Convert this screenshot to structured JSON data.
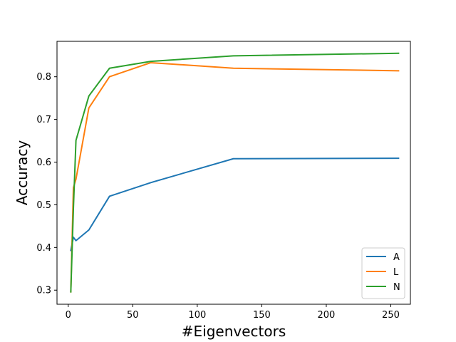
{
  "chart_data": {
    "type": "line",
    "title": "",
    "xlabel": "#Eigenvectors",
    "ylabel": "Accuracy",
    "xlim": [
      -8.7,
      265.2
    ],
    "ylim": [
      0.267,
      0.883
    ],
    "xticks": [
      0,
      50,
      100,
      150,
      200,
      250
    ],
    "xtick_labels": [
      "0",
      "50",
      "100",
      "150",
      "200",
      "250"
    ],
    "yticks": [
      0.3,
      0.4,
      0.5,
      0.6,
      0.7,
      0.8
    ],
    "ytick_labels": [
      "0.3",
      "0.4",
      "0.5",
      "0.6",
      "0.7",
      "0.8"
    ],
    "grid": false,
    "legend_position": "lower-right",
    "x": [
      2,
      4,
      6,
      16,
      32,
      64,
      128,
      256
    ],
    "series": [
      {
        "name": "A",
        "color": "#1f77b4",
        "values": [
          0.393,
          0.424,
          0.416,
          0.441,
          0.52,
          0.552,
          0.608,
          0.609
        ]
      },
      {
        "name": "L",
        "color": "#ff7f0e",
        "values": [
          0.296,
          0.54,
          0.56,
          0.727,
          0.8,
          0.833,
          0.82,
          0.814
        ]
      },
      {
        "name": "N",
        "color": "#2ca02c",
        "values": [
          0.296,
          0.49,
          0.651,
          0.755,
          0.82,
          0.836,
          0.849,
          0.855
        ]
      }
    ]
  }
}
